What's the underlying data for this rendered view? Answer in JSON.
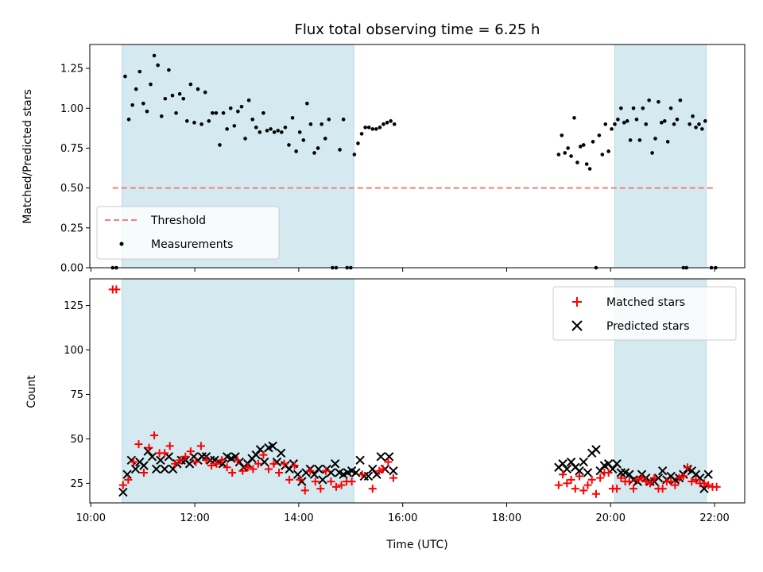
{
  "chart_data": {
    "type": "scatter",
    "title": "Flux total observing time = 6.25 h",
    "xlabel": "Time (UTC)",
    "x_ticks": [
      "10:00",
      "12:00",
      "14:00",
      "16:00",
      "18:00",
      "20:00",
      "22:00"
    ],
    "x_tick_hours": [
      10,
      12,
      14,
      16,
      18,
      20,
      22
    ],
    "xlim_hours": [
      9.98,
      22.58
    ],
    "shaded_intervals_hours": [
      [
        10.6,
        15.06
      ],
      [
        20.08,
        21.84
      ]
    ],
    "shade_color": "#d4eaf0",
    "panels": [
      {
        "ylabel": "Matched/Predicted stars",
        "ylim": [
          0,
          1.4
        ],
        "yticks": [
          "0.00",
          "0.25",
          "0.50",
          "0.75",
          "1.00",
          "1.25"
        ],
        "ytick_values": [
          0,
          0.25,
          0.5,
          0.75,
          1.0,
          1.25
        ],
        "legend": {
          "location": "lower left",
          "entries": [
            "Threshold",
            "Measurements"
          ]
        },
        "series": [
          {
            "name": "Threshold",
            "style": "dashed-line",
            "color": "#f08080",
            "x": [
              10.42,
              22.0
            ],
            "y": [
              0.5,
              0.5
            ]
          },
          {
            "name": "Measurements",
            "style": "dot",
            "color": "#000000",
            "x": [
              10.42,
              10.49,
              10.66,
              10.73,
              10.8,
              10.87,
              10.94,
              11.01,
              11.08,
              11.15,
              11.22,
              11.29,
              11.36,
              11.43,
              11.5,
              11.57,
              11.64,
              11.71,
              11.78,
              11.85,
              11.92,
              11.99,
              12.06,
              12.13,
              12.2,
              12.27,
              12.34,
              12.41,
              12.48,
              12.55,
              12.62,
              12.69,
              12.76,
              12.83,
              12.9,
              12.97,
              13.04,
              13.11,
              13.18,
              13.25,
              13.32,
              13.39,
              13.46,
              13.53,
              13.6,
              13.67,
              13.74,
              13.81,
              13.88,
              13.95,
              14.02,
              14.09,
              14.16,
              14.23,
              14.3,
              14.37,
              14.44,
              14.51,
              14.58,
              14.65,
              14.72,
              14.79,
              14.86,
              14.93,
              15.0,
              15.07,
              15.14,
              15.21,
              15.28,
              15.35,
              15.42,
              15.49,
              15.56,
              15.63,
              15.7,
              15.77,
              15.84,
              19.0,
              19.06,
              19.12,
              19.18,
              19.24,
              19.3,
              19.36,
              19.42,
              19.48,
              19.54,
              19.6,
              19.66,
              19.72,
              19.78,
              19.84,
              19.9,
              19.96,
              20.02,
              20.08,
              20.14,
              20.2,
              20.26,
              20.32,
              20.38,
              20.44,
              20.5,
              20.56,
              20.62,
              20.68,
              20.74,
              20.8,
              20.86,
              20.92,
              20.98,
              21.04,
              21.1,
              21.16,
              21.22,
              21.28,
              21.34,
              21.4,
              21.46,
              21.52,
              21.58,
              21.64,
              21.7,
              21.76,
              21.82,
              21.94,
              22.02
            ],
            "y": [
              0.0,
              0.0,
              1.2,
              0.93,
              1.02,
              1.12,
              1.23,
              1.03,
              0.98,
              1.15,
              1.33,
              1.27,
              0.95,
              1.06,
              1.24,
              1.08,
              0.97,
              1.09,
              1.06,
              0.92,
              1.15,
              0.91,
              1.12,
              0.9,
              1.1,
              0.92,
              0.97,
              0.97,
              0.77,
              0.97,
              0.87,
              1.0,
              0.89,
              0.98,
              1.01,
              0.81,
              1.05,
              0.93,
              0.88,
              0.85,
              0.97,
              0.86,
              0.87,
              0.85,
              0.86,
              0.85,
              0.88,
              0.77,
              0.94,
              0.73,
              0.85,
              0.8,
              1.03,
              0.9,
              0.72,
              0.75,
              0.9,
              0.81,
              0.93,
              0.0,
              0.0,
              0.74,
              0.93,
              0.0,
              0.0,
              0.71,
              0.78,
              0.84,
              0.88,
              0.88,
              0.87,
              0.87,
              0.88,
              0.9,
              0.91,
              0.92,
              0.9,
              0.71,
              0.83,
              0.72,
              0.75,
              0.7,
              0.94,
              0.66,
              0.76,
              0.77,
              0.65,
              0.62,
              0.79,
              0.0,
              0.83,
              0.71,
              0.9,
              0.73,
              0.87,
              0.9,
              0.93,
              1.0,
              0.91,
              0.92,
              0.8,
              1.0,
              0.93,
              0.8,
              1.0,
              0.9,
              1.05,
              0.72,
              0.81,
              1.04,
              0.91,
              0.92,
              0.79,
              1.0,
              0.9,
              0.93,
              1.05,
              0.0,
              0.0,
              0.9,
              0.95,
              0.88,
              0.9,
              0.87,
              0.92,
              0.0,
              0.0
            ],
            "note_x": "approximate"
          }
        ]
      },
      {
        "ylabel": "Count",
        "ylim": [
          14,
          140
        ],
        "yticks": [
          "25",
          "50",
          "75",
          "100",
          "125"
        ],
        "ytick_values": [
          25,
          50,
          75,
          100,
          125
        ],
        "legend": {
          "location": "upper right",
          "entries": [
            "Matched stars",
            "Predicted stars"
          ]
        },
        "series": [
          {
            "name": "Matched stars",
            "style": "plus",
            "color": "#ff0000",
            "x": [
              10.42,
              10.49,
              10.62,
              10.72,
              10.82,
              10.92,
              11.02,
              11.12,
              11.22,
              11.32,
              11.42,
              11.52,
              11.62,
              11.72,
              11.82,
              11.92,
              12.02,
              12.12,
              12.22,
              12.32,
              12.42,
              12.52,
              12.62,
              12.72,
              12.82,
              12.92,
              13.02,
              13.12,
              13.22,
              13.32,
              13.42,
              13.52,
              13.62,
              13.72,
              13.82,
              13.92,
              14.02,
              14.12,
              14.22,
              14.32,
              14.42,
              14.52,
              14.62,
              14.72,
              14.82,
              14.92,
              15.02,
              15.22,
              15.42,
              15.55,
              15.62,
              15.72,
              15.82,
              19.0,
              19.08,
              19.16,
              19.24,
              19.32,
              19.4,
              19.48,
              19.56,
              19.64,
              19.72,
              19.8,
              19.88,
              19.96,
              20.04,
              20.12,
              20.2,
              20.28,
              20.36,
              20.44,
              20.52,
              20.6,
              20.68,
              20.76,
              20.84,
              20.92,
              21.0,
              21.08,
              21.16,
              21.24,
              21.32,
              21.4,
              21.48,
              21.56,
              21.64,
              21.72,
              21.8,
              21.88,
              21.96,
              22.04
            ],
            "y": [
              134,
              134,
              24,
              27,
              37,
              47,
              31,
              45,
              52,
              42,
              42,
              46,
              36,
              38,
              40,
              43,
              37,
              46,
              38,
              35,
              36,
              38,
              34,
              31,
              38,
              32,
              34,
              33,
              36,
              41,
              33,
              36,
              31,
              36,
              27,
              35,
              27,
              21,
              32,
              26,
              22,
              32,
              26,
              23,
              24,
              26,
              26,
              30,
              22,
              32,
              33,
              37,
              28,
              24,
              30,
              25,
              27,
              22,
              29,
              21,
              24,
              27,
              19,
              28,
              31,
              31,
              22,
              22,
              28,
              26,
              26,
              22,
              27,
              28,
              26,
              25,
              28,
              22,
              22,
              26,
              26,
              24,
              28,
              29,
              34,
              26,
              27,
              25,
              25,
              24,
              23,
              23
            ],
            "note_x": "approximate"
          },
          {
            "name": "Predicted stars",
            "style": "x",
            "color": "#000000",
            "x": [
              10.62,
              10.7,
              10.78,
              10.86,
              10.94,
              11.02,
              11.1,
              11.18,
              11.26,
              11.34,
              11.42,
              11.5,
              11.58,
              11.66,
              11.74,
              11.82,
              11.9,
              11.98,
              12.06,
              12.14,
              12.22,
              12.3,
              12.38,
              12.46,
              12.54,
              12.62,
              12.7,
              12.78,
              12.86,
              12.94,
              13.02,
              13.1,
              13.18,
              13.26,
              13.34,
              13.42,
              13.5,
              13.58,
              13.66,
              13.74,
              13.82,
              13.9,
              13.98,
              14.06,
              14.14,
              14.22,
              14.3,
              14.38,
              14.46,
              14.54,
              14.62,
              14.7,
              14.78,
              14.86,
              14.94,
              15.02,
              15.1,
              15.18,
              15.26,
              15.34,
              15.42,
              15.5,
              15.58,
              15.66,
              15.74,
              15.82,
              19.0,
              19.08,
              19.16,
              19.24,
              19.32,
              19.4,
              19.48,
              19.56,
              19.64,
              19.72,
              19.8,
              19.88,
              19.96,
              20.04,
              20.12,
              20.2,
              20.28,
              20.36,
              20.44,
              20.52,
              20.6,
              20.68,
              20.76,
              20.84,
              20.92,
              21.0,
              21.08,
              21.16,
              21.24,
              21.32,
              21.4,
              21.48,
              21.56,
              21.64,
              21.72,
              21.8,
              21.88
            ],
            "y": [
              20,
              30,
              38,
              33,
              37,
              35,
              43,
              40,
              33,
              38,
              33,
              40,
              33,
              36,
              38,
              38,
              36,
              40,
              38,
              40,
              40,
              38,
              38,
              37,
              36,
              40,
              39,
              40,
              37,
              34,
              36,
              39,
              41,
              44,
              37,
              45,
              46,
              37,
              42,
              35,
              33,
              36,
              30,
              26,
              31,
              33,
              30,
              33,
              27,
              33,
              31,
              36,
              31,
              30,
              31,
              32,
              31,
              38,
              29,
              29,
              33,
              30,
              40,
              33,
              40,
              32,
              34,
              36,
              33,
              37,
              34,
              32,
              37,
              31,
              42,
              44,
              32,
              35,
              36,
              33,
              36,
              31,
              31,
              30,
              27,
              26,
              30,
              28,
              26,
              26,
              28,
              32,
              27,
              29,
              27,
              28,
              30,
              33,
              32,
              30,
              28,
              22,
              30
            ],
            "note_x": "approximate"
          }
        ]
      }
    ]
  }
}
